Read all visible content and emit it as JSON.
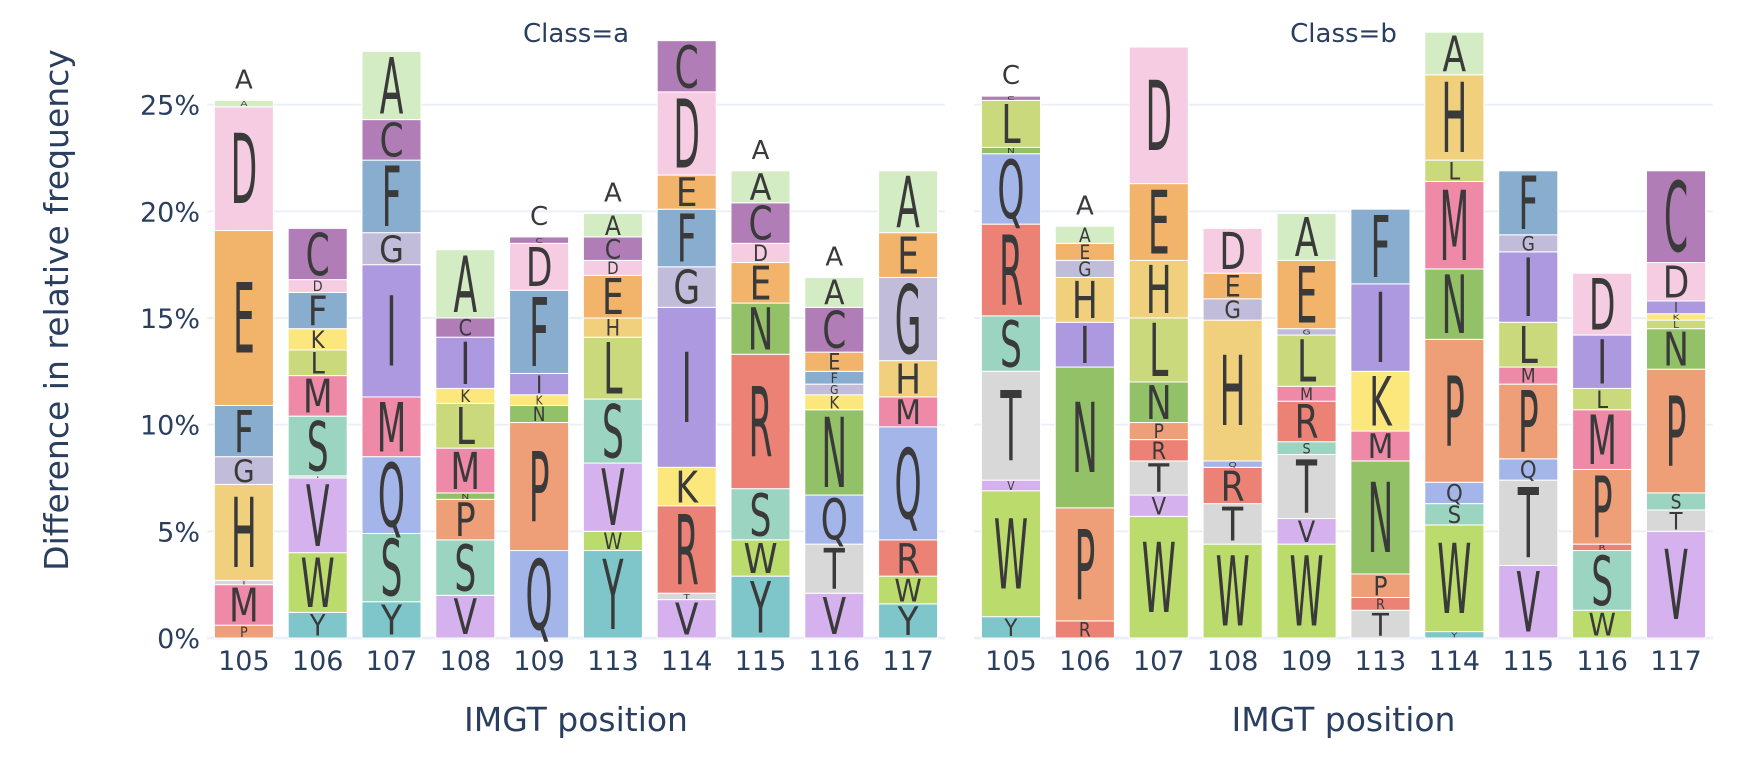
{
  "chart_data": {
    "type": "bar",
    "stacked": true,
    "ylabel": "Difference in relative frequency",
    "ylim": [
      0,
      0.285
    ],
    "yticks": [
      0,
      0.05,
      0.1,
      0.15,
      0.2,
      0.25
    ],
    "ytick_labels": [
      "0%",
      "5%",
      "10%",
      "15%",
      "20%",
      "25%"
    ],
    "grid": true,
    "colors": {
      "A": "#d4ecc4",
      "C": "#b07db7",
      "D": "#f5cce2",
      "E": "#f2b36b",
      "F": "#88adcf",
      "G": "#c0bcd9",
      "H": "#f0d07c",
      "I": "#ac99e0",
      "K": "#fbe77b",
      "L": "#c9d97c",
      "M": "#ee89a8",
      "N": "#93c167",
      "P": "#ee9f77",
      "Q": "#a4b5ea",
      "R": "#ec8275",
      "S": "#9bd5c2",
      "T": "#d8d8d8",
      "V": "#d5b2ee",
      "W": "#bbdc6c",
      "Y": "#7ec6c9"
    },
    "panels": [
      {
        "title": "Class=a",
        "xlabel": "IMGT position",
        "categories": [
          "105",
          "106",
          "107",
          "108",
          "109",
          "113",
          "114",
          "115",
          "116",
          "117"
        ],
        "stacks": [
          [
            [
              "P",
              0.006
            ],
            [
              "M",
              0.019
            ],
            [
              "T",
              0.002
            ],
            [
              "H",
              0.045
            ],
            [
              "G",
              0.013
            ],
            [
              "F",
              0.024
            ],
            [
              "E",
              0.082
            ],
            [
              "D",
              0.058
            ],
            [
              "A",
              0.003
            ]
          ],
          [
            [
              "Y",
              0.012
            ],
            [
              "W",
              0.028
            ],
            [
              "V",
              0.035
            ],
            [
              "T",
              0.001
            ],
            [
              "S",
              0.028
            ],
            [
              "M",
              0.019
            ],
            [
              "L",
              0.012
            ],
            [
              "K",
              0.01
            ],
            [
              "F",
              0.017
            ],
            [
              "D",
              0.006
            ],
            [
              "C",
              0.024
            ]
          ],
          [
            [
              "Y",
              0.017
            ],
            [
              "S",
              0.032
            ],
            [
              "Q",
              0.036
            ],
            [
              "M",
              0.028
            ],
            [
              "I",
              0.062
            ],
            [
              "G",
              0.015
            ],
            [
              "F",
              0.034
            ],
            [
              "C",
              0.019
            ],
            [
              "A",
              0.032
            ]
          ],
          [
            [
              "V",
              0.02
            ],
            [
              "S",
              0.026
            ],
            [
              "P",
              0.019
            ],
            [
              "N",
              0.003
            ],
            [
              "M",
              0.021
            ],
            [
              "L",
              0.021
            ],
            [
              "K",
              0.007
            ],
            [
              "I",
              0.024
            ],
            [
              "C",
              0.009
            ],
            [
              "A",
              0.032
            ]
          ],
          [
            [
              "Q",
              0.041
            ],
            [
              "P",
              0.06
            ],
            [
              "N",
              0.008
            ],
            [
              "K",
              0.005
            ],
            [
              "I",
              0.01
            ],
            [
              "F",
              0.039
            ],
            [
              "D",
              0.022
            ],
            [
              "C",
              0.003
            ]
          ],
          [
            [
              "Y",
              0.041
            ],
            [
              "W",
              0.009
            ],
            [
              "V",
              0.032
            ],
            [
              "S",
              0.03
            ],
            [
              "L",
              0.029
            ],
            [
              "H",
              0.009
            ],
            [
              "E",
              0.02
            ],
            [
              "D",
              0.007
            ],
            [
              "C",
              0.011
            ],
            [
              "A",
              0.011
            ]
          ],
          [
            [
              "V",
              0.018
            ],
            [
              "T",
              0.003
            ],
            [
              "R",
              0.041
            ],
            [
              "K",
              0.018
            ],
            [
              "I",
              0.075
            ],
            [
              "G",
              0.019
            ],
            [
              "F",
              0.027
            ],
            [
              "E",
              0.016
            ],
            [
              "D",
              0.039
            ],
            [
              "C",
              0.024
            ]
          ],
          [
            [
              "Y",
              0.029
            ],
            [
              "W",
              0.017
            ],
            [
              "S",
              0.024
            ],
            [
              "R",
              0.063
            ],
            [
              "N",
              0.024
            ],
            [
              "E",
              0.019
            ],
            [
              "D",
              0.009
            ],
            [
              "C",
              0.019
            ],
            [
              "A",
              0.015
            ]
          ],
          [
            [
              "V",
              0.021
            ],
            [
              "T",
              0.023
            ],
            [
              "Q",
              0.023
            ],
            [
              "N",
              0.04
            ],
            [
              "K",
              0.007
            ],
            [
              "G",
              0.005
            ],
            [
              "F",
              0.006
            ],
            [
              "E",
              0.009
            ],
            [
              "C",
              0.021
            ],
            [
              "A",
              0.014
            ]
          ],
          [
            [
              "Y",
              0.016
            ],
            [
              "W",
              0.013
            ],
            [
              "R",
              0.017
            ],
            [
              "Q",
              0.053
            ],
            [
              "M",
              0.014
            ],
            [
              "H",
              0.017
            ],
            [
              "G",
              0.039
            ],
            [
              "E",
              0.021
            ],
            [
              "A",
              0.029
            ]
          ]
        ],
        "top_labels": [
          "A",
          "",
          "",
          "",
          "C",
          "A",
          "",
          "A",
          "A",
          ""
        ]
      },
      {
        "title": "Class=b",
        "xlabel": "IMGT position",
        "categories": [
          "105",
          "106",
          "107",
          "108",
          "109",
          "113",
          "114",
          "115",
          "116",
          "117"
        ],
        "stacks": [
          [
            [
              "Y",
              0.01
            ],
            [
              "W",
              0.059
            ],
            [
              "V",
              0.005
            ],
            [
              "T",
              0.051
            ],
            [
              "S",
              0.026
            ],
            [
              "R",
              0.043
            ],
            [
              "Q",
              0.033
            ],
            [
              "N",
              0.003
            ],
            [
              "L",
              0.022
            ],
            [
              "C",
              0.002
            ]
          ],
          [
            [
              "R",
              0.008
            ],
            [
              "P",
              0.053
            ],
            [
              "N",
              0.066
            ],
            [
              "I",
              0.021
            ],
            [
              "H",
              0.021
            ],
            [
              "G",
              0.008
            ],
            [
              "E",
              0.008
            ],
            [
              "A",
              0.008
            ]
          ],
          [
            [
              "W",
              0.057
            ],
            [
              "V",
              0.01
            ],
            [
              "T",
              0.016
            ],
            [
              "R",
              0.01
            ],
            [
              "P",
              0.008
            ],
            [
              "N",
              0.019
            ],
            [
              "L",
              0.03
            ],
            [
              "H",
              0.027
            ],
            [
              "E",
              0.036
            ],
            [
              "D",
              0.064
            ]
          ],
          [
            [
              "W",
              0.044
            ],
            [
              "T",
              0.019
            ],
            [
              "R",
              0.017
            ],
            [
              "Q",
              0.003
            ],
            [
              "H",
              0.066
            ],
            [
              "G",
              0.01
            ],
            [
              "E",
              0.012
            ],
            [
              "D",
              0.021
            ]
          ],
          [
            [
              "W",
              0.044
            ],
            [
              "V",
              0.012
            ],
            [
              "T",
              0.03
            ],
            [
              "S",
              0.006
            ],
            [
              "R",
              0.019
            ],
            [
              "M",
              0.007
            ],
            [
              "L",
              0.024
            ],
            [
              "G",
              0.003
            ],
            [
              "E",
              0.032
            ],
            [
              "A",
              0.022
            ]
          ],
          [
            [
              "T",
              0.013
            ],
            [
              "R",
              0.006
            ],
            [
              "P",
              0.011
            ],
            [
              "N",
              0.053
            ],
            [
              "M",
              0.014
            ],
            [
              "K",
              0.028
            ],
            [
              "I",
              0.041
            ],
            [
              "F",
              0.035
            ]
          ],
          [
            [
              "Y",
              0.003
            ],
            [
              "W",
              0.05
            ],
            [
              "S",
              0.01
            ],
            [
              "Q",
              0.01
            ],
            [
              "P",
              0.067
            ],
            [
              "N",
              0.033
            ],
            [
              "M",
              0.041
            ],
            [
              "L",
              0.01
            ],
            [
              "H",
              0.04
            ],
            [
              "A",
              0.02
            ]
          ],
          [
            [
              "V",
              0.034
            ],
            [
              "T",
              0.04
            ],
            [
              "Q",
              0.01
            ],
            [
              "P",
              0.035
            ],
            [
              "M",
              0.008
            ],
            [
              "L",
              0.021
            ],
            [
              "I",
              0.033
            ],
            [
              "G",
              0.008
            ],
            [
              "F",
              0.03
            ]
          ],
          [
            [
              "W",
              0.013
            ],
            [
              "S",
              0.028
            ],
            [
              "R",
              0.003
            ],
            [
              "P",
              0.035
            ],
            [
              "M",
              0.028
            ],
            [
              "L",
              0.01
            ],
            [
              "I",
              0.025
            ],
            [
              "D",
              0.029
            ]
          ],
          [
            [
              "V",
              0.05
            ],
            [
              "T",
              0.01
            ],
            [
              "S",
              0.008
            ],
            [
              "P",
              0.058
            ],
            [
              "N",
              0.019
            ],
            [
              "L",
              0.004
            ],
            [
              "K",
              0.003
            ],
            [
              "I",
              0.006
            ],
            [
              "D",
              0.018
            ],
            [
              "C",
              0.043
            ]
          ]
        ],
        "top_labels": [
          "C",
          "A",
          "",
          "",
          "",
          "",
          "",
          "",
          "",
          ""
        ]
      }
    ]
  }
}
